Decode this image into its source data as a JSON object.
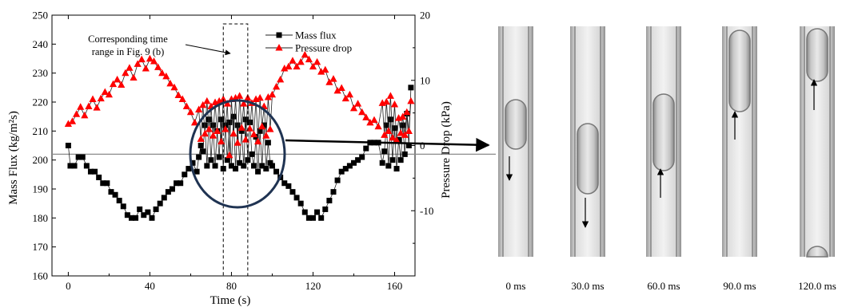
{
  "chart_data": {
    "type": "line",
    "xlabel": "Time (s)",
    "ylabel": "Mass Flux (kg/m²s)",
    "y2label": "Pressure Drop (kPa)",
    "xlim": [
      -8,
      170
    ],
    "ylim": [
      160,
      250
    ],
    "y2lim": [
      -20,
      20
    ],
    "xticks": [
      "0",
      "40",
      "80",
      "120",
      "160"
    ],
    "yticks": [
      "160",
      "170",
      "180",
      "190",
      "200",
      "210",
      "220",
      "230",
      "240",
      "250"
    ],
    "y2ticks": [
      "-10",
      "0",
      "10",
      "20"
    ],
    "legend_position": "top-right",
    "annotation": "Corresponding time range in Fig. 9 (b)",
    "annotation_lines": [
      "Corresponding time",
      "range in Fig. 9 (b)"
    ],
    "dashed_box_x": [
      76,
      88
    ],
    "reference_line_y": 202,
    "series": [
      {
        "name": "Mass flux",
        "axis": "left",
        "color": "#000000",
        "marker": "square",
        "x": [
          0,
          1,
          3,
          5,
          7,
          9,
          11,
          13,
          15,
          17,
          19,
          21,
          23,
          25,
          27,
          29,
          31,
          33,
          35,
          37,
          39,
          41,
          43,
          45,
          47,
          49,
          51,
          53,
          55,
          57,
          59,
          61,
          63,
          64,
          65,
          66,
          67,
          68,
          69,
          70,
          71,
          72,
          73,
          74,
          75,
          76,
          77,
          78,
          79,
          80,
          81,
          82,
          83,
          84,
          85,
          86,
          87,
          88,
          89,
          90,
          91,
          92,
          93,
          94,
          95,
          96,
          97,
          98,
          99,
          100,
          102,
          104,
          106,
          108,
          110,
          112,
          114,
          116,
          118,
          120,
          122,
          124,
          126,
          128,
          130,
          132,
          134,
          136,
          138,
          140,
          142,
          144,
          146,
          148,
          150,
          152,
          154,
          155,
          156,
          157,
          158,
          159,
          160,
          161,
          162,
          163,
          164,
          165,
          166,
          167,
          168
        ],
        "values": [
          205,
          198,
          198,
          201,
          201,
          198,
          196,
          196,
          194,
          192,
          192,
          189,
          188,
          186,
          184,
          181,
          180,
          180,
          183,
          181,
          182,
          180,
          183,
          185,
          187,
          189,
          190,
          192,
          192,
          195,
          197,
          199,
          196,
          201,
          205,
          203,
          212,
          198,
          214,
          200,
          212,
          198,
          210,
          201,
          214,
          197,
          212,
          200,
          213,
          198,
          215,
          197,
          212,
          199,
          210,
          198,
          214,
          200,
          213,
          202,
          198,
          208,
          196,
          210,
          198,
          212,
          197,
          206,
          199,
          198,
          196,
          194,
          192,
          191,
          189,
          187,
          185,
          182,
          180,
          180,
          182,
          180,
          183,
          186,
          189,
          193,
          196,
          197,
          198,
          199,
          200,
          201,
          204,
          206,
          206,
          206,
          199,
          203,
          212,
          198,
          214,
          200,
          211,
          197,
          207,
          200,
          212,
          202,
          216,
          205,
          225
        ]
      },
      {
        "name": "Pressure drop",
        "axis": "right",
        "color": "#ff0000",
        "marker": "triangle",
        "x": [
          0,
          2,
          4,
          6,
          8,
          10,
          12,
          14,
          16,
          18,
          20,
          22,
          24,
          26,
          28,
          30,
          32,
          34,
          36,
          38,
          40,
          42,
          44,
          46,
          48,
          50,
          52,
          54,
          56,
          58,
          60,
          62,
          64,
          65,
          66,
          67,
          68,
          69,
          70,
          71,
          72,
          73,
          74,
          75,
          76,
          77,
          78,
          79,
          80,
          81,
          82,
          83,
          84,
          85,
          86,
          87,
          88,
          89,
          90,
          91,
          92,
          93,
          94,
          95,
          96,
          97,
          98,
          99,
          100,
          102,
          104,
          106,
          108,
          110,
          112,
          114,
          116,
          118,
          120,
          122,
          124,
          126,
          128,
          130,
          132,
          134,
          136,
          138,
          140,
          142,
          144,
          146,
          148,
          150,
          152,
          154,
          155,
          156,
          157,
          158,
          159,
          160,
          161,
          162,
          163,
          164,
          165,
          166,
          167,
          168
        ],
        "values": [
          3.3,
          3.7,
          4.8,
          5.9,
          4.6,
          6.0,
          7.1,
          5.8,
          7.2,
          8.2,
          7.8,
          9.4,
          10.1,
          9.3,
          11.1,
          11.9,
          10.4,
          12.5,
          13.2,
          11.8,
          13.3,
          12.9,
          12.0,
          11.1,
          10.6,
          9.5,
          8.9,
          7.7,
          7.1,
          6.0,
          5.1,
          3.5,
          5.5,
          1.0,
          6.2,
          1.8,
          6.8,
          2.5,
          6.0,
          1.5,
          6.6,
          2.2,
          6.8,
          0.6,
          7.1,
          2.5,
          6.4,
          -1.5,
          7.1,
          1.8,
          7.3,
          0.4,
          7.6,
          2.7,
          6.4,
          0.9,
          7.3,
          2.6,
          6.5,
          1.7,
          7.1,
          0.6,
          7.3,
          2.9,
          6.0,
          1.5,
          7.4,
          2.5,
          7.8,
          9.0,
          10.1,
          11.8,
          12.1,
          13.0,
          12.1,
          12.8,
          13.9,
          13.2,
          12.1,
          12.8,
          11.3,
          11.6,
          9.7,
          10.2,
          8.4,
          8.8,
          7.2,
          7.8,
          5.7,
          6.4,
          5.1,
          4.3,
          3.5,
          3.9,
          2.9,
          6.5,
          1.6,
          6.7,
          2.2,
          7.6,
          1.2,
          6.3,
          0.8,
          4.2,
          1.9,
          4.4,
          1.6,
          5.1,
          2.2,
          6.8
        ]
      }
    ]
  },
  "frames": {
    "labels": [
      "0 ms",
      "30.0 ms",
      "60.0 ms",
      "90.0 ms",
      "120.0 ms"
    ],
    "bubble_direction": [
      "down",
      "down",
      "up",
      "up",
      "up"
    ]
  }
}
